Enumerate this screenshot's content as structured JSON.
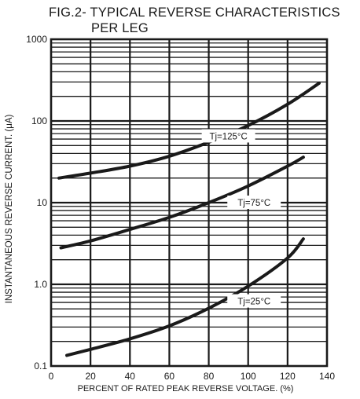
{
  "chart_data": {
    "type": "line",
    "title_line1": "FIG.2- TYPICAL REVERSE CHARACTERISTICS",
    "title_line2": "PER LEG",
    "xlabel": "PERCENT OF RATED PEAK REVERSE VOLTAGE. (%)",
    "ylabel": "INSTANTANEOUS REVERSE CURRENT. (μA)",
    "xlim": [
      0,
      140
    ],
    "ylim": [
      0.1,
      1000
    ],
    "yscale": "log",
    "grid": true,
    "x_ticks": [
      "0",
      "20",
      "40",
      "60",
      "80",
      "100",
      "120",
      "140"
    ],
    "y_ticks": [
      {
        "value": 0.1,
        "label": "0.1"
      },
      {
        "value": 1,
        "label": "1.0"
      },
      {
        "value": 10,
        "label": "10"
      },
      {
        "value": 100,
        "label": "100"
      },
      {
        "value": 1000,
        "label": "1000"
      }
    ],
    "series": [
      {
        "name": "Tj=125°C",
        "label_at": [
          90,
          65
        ],
        "points": [
          [
            4,
            20
          ],
          [
            20,
            23
          ],
          [
            40,
            28
          ],
          [
            60,
            37
          ],
          [
            80,
            55
          ],
          [
            100,
            88
          ],
          [
            120,
            160
          ],
          [
            136,
            290
          ]
        ]
      },
      {
        "name": "Tj=75°C",
        "label_at": [
          103,
          10
        ],
        "points": [
          [
            5,
            2.8
          ],
          [
            20,
            3.4
          ],
          [
            40,
            4.7
          ],
          [
            60,
            6.6
          ],
          [
            80,
            10
          ],
          [
            100,
            16
          ],
          [
            120,
            28
          ],
          [
            128,
            36
          ]
        ]
      },
      {
        "name": "Tj=25°C",
        "label_at": [
          103,
          0.62
        ],
        "points": [
          [
            8,
            0.135
          ],
          [
            20,
            0.16
          ],
          [
            40,
            0.215
          ],
          [
            60,
            0.31
          ],
          [
            80,
            0.51
          ],
          [
            100,
            0.95
          ],
          [
            120,
            2.1
          ],
          [
            128,
            3.6
          ]
        ]
      }
    ]
  },
  "colors": {
    "grid": "#1a1a1a",
    "curve": "#1a1a1a",
    "background": "#ffffff"
  }
}
